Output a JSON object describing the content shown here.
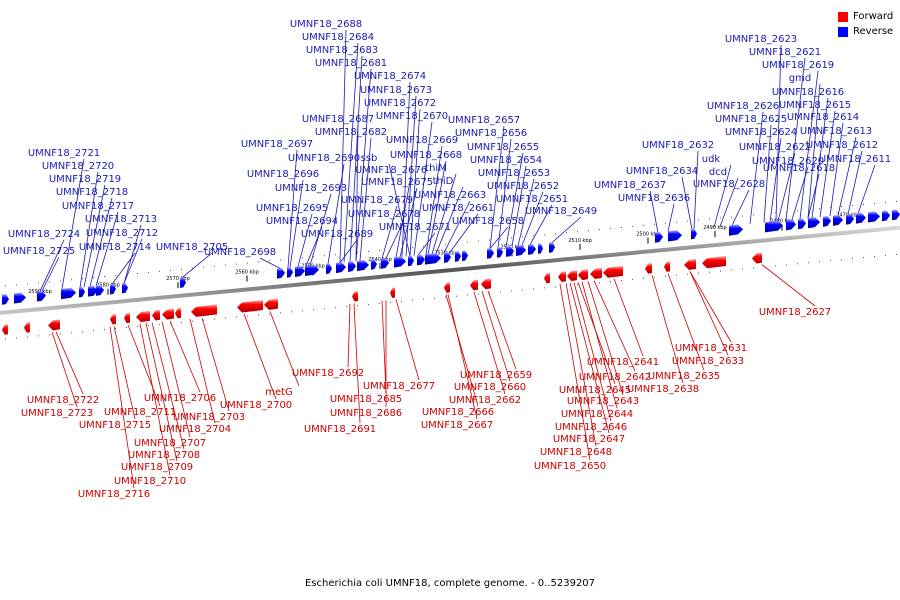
{
  "legend": [
    {
      "label": "Forward",
      "color": "#ff0000"
    },
    {
      "label": "Reverse",
      "color": "#0000ff"
    }
  ],
  "caption": "Escherichia coli UMNF18, complete genome. - 0..5239207",
  "colors": {
    "forward_label": "#cc0000",
    "reverse_label": "#1a1ab4",
    "backbone": "#888888"
  },
  "ticks": [
    "2590 kbp",
    "2580 kbp",
    "2570 kbp",
    "2560 kbp",
    "2550 kbp",
    "2540 kbp",
    "2530 kbp",
    "2520 kbp",
    "2510 kbp",
    "2500 kbp",
    "2490 kbp",
    "2480 kbp",
    "2470 kbp"
  ],
  "reverse_labels": [
    "UMNF18_2725",
    "UMNF18_2724",
    "UMNF18_2721",
    "UMNF18_2720",
    "UMNF18_2719",
    "UMNF18_2718",
    "UMNF18_2717",
    "UMNF18_2714",
    "UMNF18_2713",
    "UMNF18_2712",
    "UMNF18_2705",
    "UMNF18_2698",
    "UMNF18_2697",
    "UMNF18_2696",
    "UMNF18_2695",
    "UMNF18_2694",
    "UMNF18_2693",
    "UMNF18_2690",
    "UMNF18_2689",
    "UMNF18_2688",
    "UMNF18_2684",
    "UMNF18_2683",
    "UMNF18_2681",
    "UMNF18_2687",
    "UMNF18_2682",
    "UMNF18_2679",
    "UMNF18_2678",
    "UMNF18_2676",
    "UMNF18_2675",
    "UMNF18_2674",
    "UMNF18_2673",
    "UMNF18_2672",
    "UMNF18_2670",
    "UMNF18_2671",
    "ssb",
    "UMNF18_2669",
    "UMNF18_2668",
    "thiM",
    "thiD",
    "UMNF18_2663",
    "UMNF18_2661",
    "UMNF18_2658",
    "UMNF18_2657",
    "UMNF18_2656",
    "UMNF18_2655",
    "UMNF18_2654",
    "UMNF18_2653",
    "UMNF18_2652",
    "UMNF18_2651",
    "UMNF18_2649",
    "UMNF18_2637",
    "UMNF18_2636",
    "UMNF18_2634",
    "UMNF18_2632",
    "udk",
    "dcd",
    "UMNF18_2628",
    "UMNF18_2626",
    "UMNF18_2625",
    "UMNF18_2624",
    "UMNF18_2623",
    "UMNF18_2622",
    "UMNF18_2621",
    "UMNF18_2620",
    "UMNF18_2619",
    "UMNF18_2618",
    "gmd",
    "UMNF18_2616",
    "UMNF18_2615",
    "UMNF18_2614",
    "UMNF18_2613",
    "UMNF18_2612",
    "UMNF18_2611"
  ],
  "forward_labels": [
    "UMNF18_2722",
    "UMNF18_2723",
    "UMNF18_2715",
    "UMNF18_2716",
    "UMNF18_2711",
    "UMNF18_2710",
    "UMNF18_2709",
    "UMNF18_2708",
    "UMNF18_2707",
    "UMNF18_2706",
    "UMNF18_2704",
    "UMNF18_2703",
    "UMNF18_2700",
    "metG",
    "UMNF18_2692",
    "UMNF18_2691",
    "UMNF18_2685",
    "UMNF18_2686",
    "UMNF18_2677",
    "UMNF18_2667",
    "UMNF18_2666",
    "UMNF18_2662",
    "UMNF18_2660",
    "UMNF18_2659",
    "UMNF18_2650",
    "UMNF18_2648",
    "UMNF18_2647",
    "UMNF18_2646",
    "UMNF18_2645",
    "UMNF18_2644",
    "UMNF18_2643",
    "UMNF18_2642",
    "UMNF18_2641",
    "UMNF18_2638",
    "UMNF18_2635",
    "UMNF18_2633",
    "UMNF18_2631",
    "UMNF18_2627"
  ]
}
